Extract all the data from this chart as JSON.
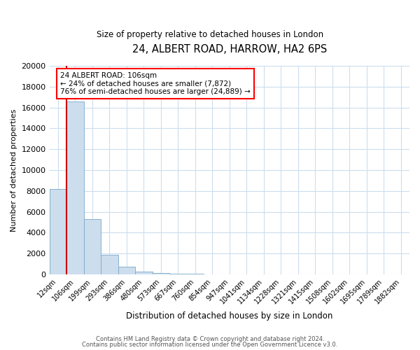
{
  "title": "24, ALBERT ROAD, HARROW, HA2 6PS",
  "subtitle": "Size of property relative to detached houses in London",
  "xlabel": "Distribution of detached houses by size in London",
  "ylabel": "Number of detached properties",
  "bar_color": "#ccdded",
  "bar_edge_color": "#7aaac8",
  "bg_color": "#ffffff",
  "plot_bg_color": "#ffffff",
  "grid_color": "#ccddee",
  "red_line_color": "#cc0000",
  "annotation_title": "24 ALBERT ROAD: 106sqm",
  "annotation_line1": "← 24% of detached houses are smaller (7,872)",
  "annotation_line2": "76% of semi-detached houses are larger (24,889) →",
  "categories": [
    "12sqm",
    "106sqm",
    "199sqm",
    "293sqm",
    "386sqm",
    "480sqm",
    "573sqm",
    "667sqm",
    "760sqm",
    "854sqm",
    "947sqm",
    "1041sqm",
    "1134sqm",
    "1228sqm",
    "1321sqm",
    "1415sqm",
    "1508sqm",
    "1602sqm",
    "1695sqm",
    "1789sqm",
    "1882sqm"
  ],
  "values": [
    8200,
    16600,
    5300,
    1850,
    750,
    300,
    150,
    100,
    70,
    0,
    0,
    0,
    0,
    0,
    0,
    0,
    0,
    0,
    0,
    0,
    0
  ],
  "ylim": [
    0,
    20000
  ],
  "yticks": [
    0,
    2000,
    4000,
    6000,
    8000,
    10000,
    12000,
    14000,
    16000,
    18000,
    20000
  ],
  "footer1": "Contains HM Land Registry data © Crown copyright and database right 2024.",
  "footer2": "Contains public sector information licensed under the Open Government Licence v3.0."
}
